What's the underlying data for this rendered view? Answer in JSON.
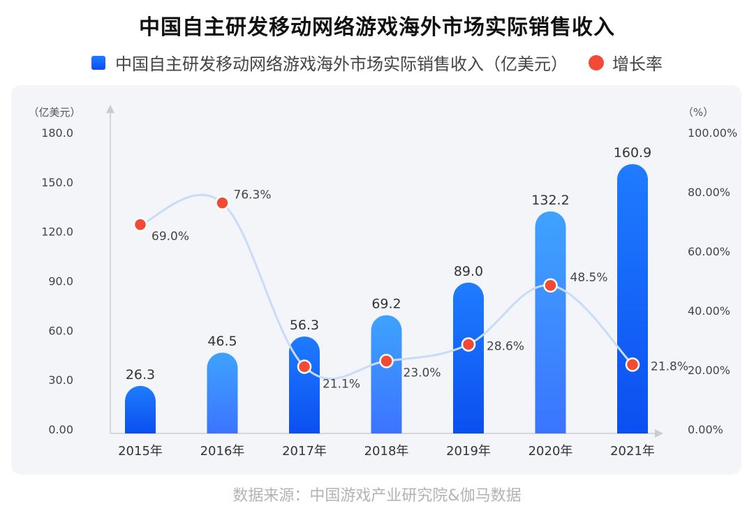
{
  "title": "中国自主研发移动网络游戏海外市场实际销售收入",
  "legend": {
    "bar_label": "中国自主研发移动网络游戏海外市场实际销售收入（亿美元）",
    "line_label": "增长率"
  },
  "source": "数据来源：中国游戏产业研究院&伽马数据",
  "colors": {
    "bar_top": "#1f7cff",
    "bar_bottom": "#0b4ff0",
    "bar_light_top": "#3fa2ff",
    "bar_light_bottom": "#3b74ff",
    "point": "#f24a35",
    "line": "#c9dcf7",
    "panel": "#f3f5f8"
  },
  "chart_data": {
    "type": "bar",
    "categories": [
      "2015年",
      "2016年",
      "2017年",
      "2018年",
      "2019年",
      "2020年",
      "2021年"
    ],
    "series": [
      {
        "name": "中国自主研发移动网络游戏海外市场实际销售收入（亿美元）",
        "axis": "left",
        "values": [
          26.3,
          46.5,
          56.3,
          69.2,
          89.0,
          132.2,
          160.9
        ],
        "labels": [
          "26.3",
          "46.5",
          "56.3",
          "69.2",
          "89.0",
          "132.2",
          "160.9"
        ]
      },
      {
        "name": "增长率",
        "type": "line",
        "axis": "right",
        "values": [
          69.0,
          76.3,
          21.1,
          23.0,
          28.6,
          48.5,
          21.8
        ],
        "labels": [
          "69.0%",
          "76.3%",
          "21.1%",
          "23.0%",
          "28.6%",
          "48.5%",
          "21.8%"
        ]
      }
    ],
    "y_left": {
      "unit_label": "（亿美元）",
      "range": [
        0,
        180
      ],
      "ticks": [
        0,
        30,
        60,
        90,
        120,
        150,
        180
      ],
      "tick_labels": [
        "0.00",
        "30.0",
        "60.0",
        "90.0",
        "120.0",
        "150.0",
        "180.0"
      ]
    },
    "y_right": {
      "unit_label": "（%）",
      "range": [
        0,
        100
      ],
      "ticks": [
        0,
        20,
        40,
        60,
        80,
        100
      ],
      "tick_labels": [
        "0.00%",
        "20.00%",
        "40.00%",
        "60.00%",
        "80.00%",
        "100.00%"
      ]
    },
    "grid": false,
    "legend_position": "top"
  }
}
